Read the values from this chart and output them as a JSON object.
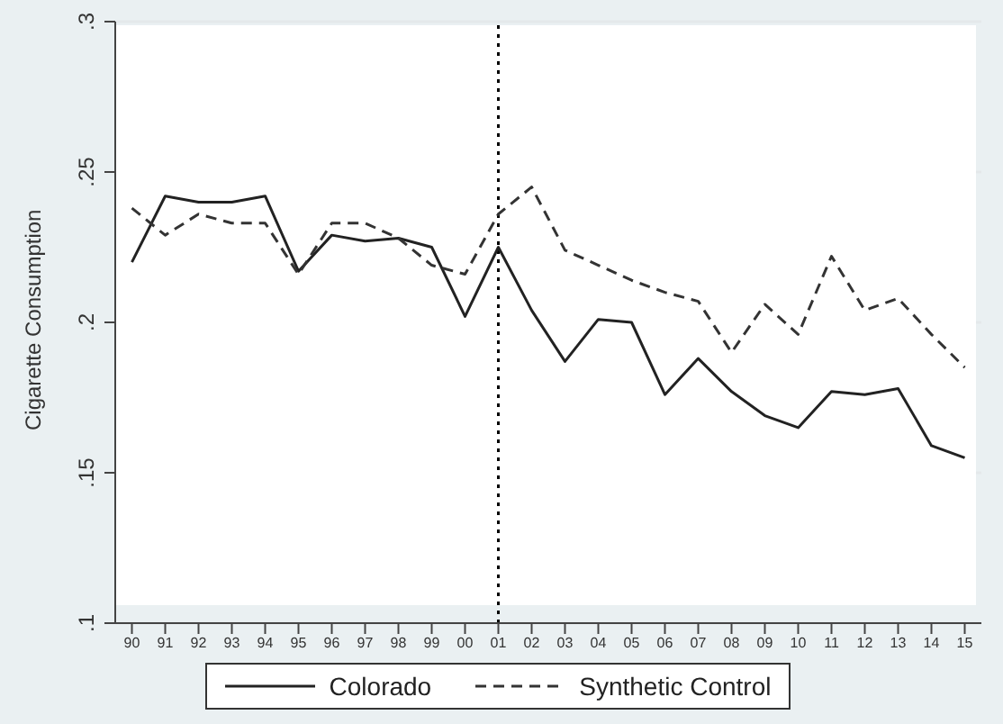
{
  "chart_data": {
    "type": "line",
    "ylabel": "Cigarette Consumption",
    "categories": [
      "90",
      "91",
      "92",
      "93",
      "94",
      "95",
      "96",
      "97",
      "98",
      "99",
      "00",
      "01",
      "02",
      "03",
      "04",
      "05",
      "06",
      "07",
      "08",
      "09",
      "10",
      "11",
      "12",
      "13",
      "14",
      "15"
    ],
    "series": [
      {
        "name": "Colorado",
        "color": "#222222",
        "line_style": "solid",
        "values": [
          0.22,
          0.242,
          0.24,
          0.24,
          0.242,
          0.217,
          0.229,
          0.227,
          0.228,
          0.225,
          0.202,
          0.225,
          0.204,
          0.187,
          0.201,
          0.2,
          0.176,
          0.188,
          0.177,
          0.169,
          0.165,
          0.177,
          0.176,
          0.178,
          0.159,
          0.155
        ]
      },
      {
        "name": "Synthetic Control",
        "color": "#333333",
        "line_style": "dashed",
        "values": [
          0.238,
          0.229,
          0.236,
          0.233,
          0.233,
          0.216,
          0.233,
          0.233,
          0.228,
          0.219,
          0.216,
          0.236,
          0.245,
          0.224,
          0.219,
          0.214,
          0.21,
          0.207,
          0.19,
          0.206,
          0.196,
          0.222,
          0.204,
          0.208,
          0.196,
          0.185
        ]
      }
    ],
    "ylim": [
      0.1,
      0.3
    ],
    "yticks": [
      {
        "value": 0.1,
        "label": ".1"
      },
      {
        "value": 0.15,
        "label": ".15"
      },
      {
        "value": 0.2,
        "label": ".2"
      },
      {
        "value": 0.25,
        "label": ".25"
      },
      {
        "value": 0.3,
        "label": ".3"
      }
    ],
    "grid": "y",
    "legend": "bottom",
    "marker": "none",
    "ref_lines": [
      {
        "axis": "x",
        "value": "01",
        "color": "#000000",
        "line_style": "dotted"
      }
    ]
  }
}
